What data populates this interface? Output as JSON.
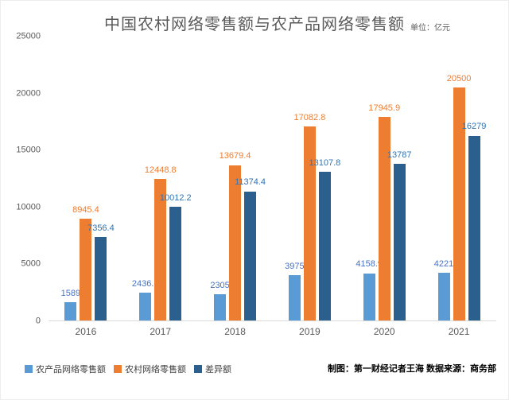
{
  "title": "中国农村网络零售额与农产品网络零售额",
  "unit_label": "单位：亿元",
  "footer_credit": "制图：第一财经记者王海 数据来源：商务部",
  "chart_data": {
    "type": "bar",
    "title": "中国农村网络零售额与农产品网络零售额",
    "unit": "亿元",
    "categories": [
      "2016",
      "2017",
      "2018",
      "2019",
      "2020",
      "2021"
    ],
    "series": [
      {
        "name": "农产品网络零售额",
        "color": "#5b9bd5",
        "label_color": "#4472c4",
        "values": [
          1589,
          2436.6,
          2305,
          3975,
          4158.9,
          4221
        ]
      },
      {
        "name": "农村网络零售额",
        "color": "#ed7d31",
        "label_color": "#ed7d31",
        "values": [
          8945.4,
          12448.8,
          13679.4,
          17082.8,
          17945.9,
          20500
        ]
      },
      {
        "name": "差异额",
        "color": "#2b5f8e",
        "label_color": "#2e75b6",
        "values": [
          7356.4,
          10012.2,
          11374.4,
          13107.8,
          13787,
          16279
        ]
      }
    ],
    "ylim": [
      0,
      25000
    ],
    "yticks": [
      0,
      5000,
      10000,
      15000,
      20000,
      25000
    ],
    "grid": false,
    "legend_position": "bottom-left",
    "data_labels": true
  }
}
